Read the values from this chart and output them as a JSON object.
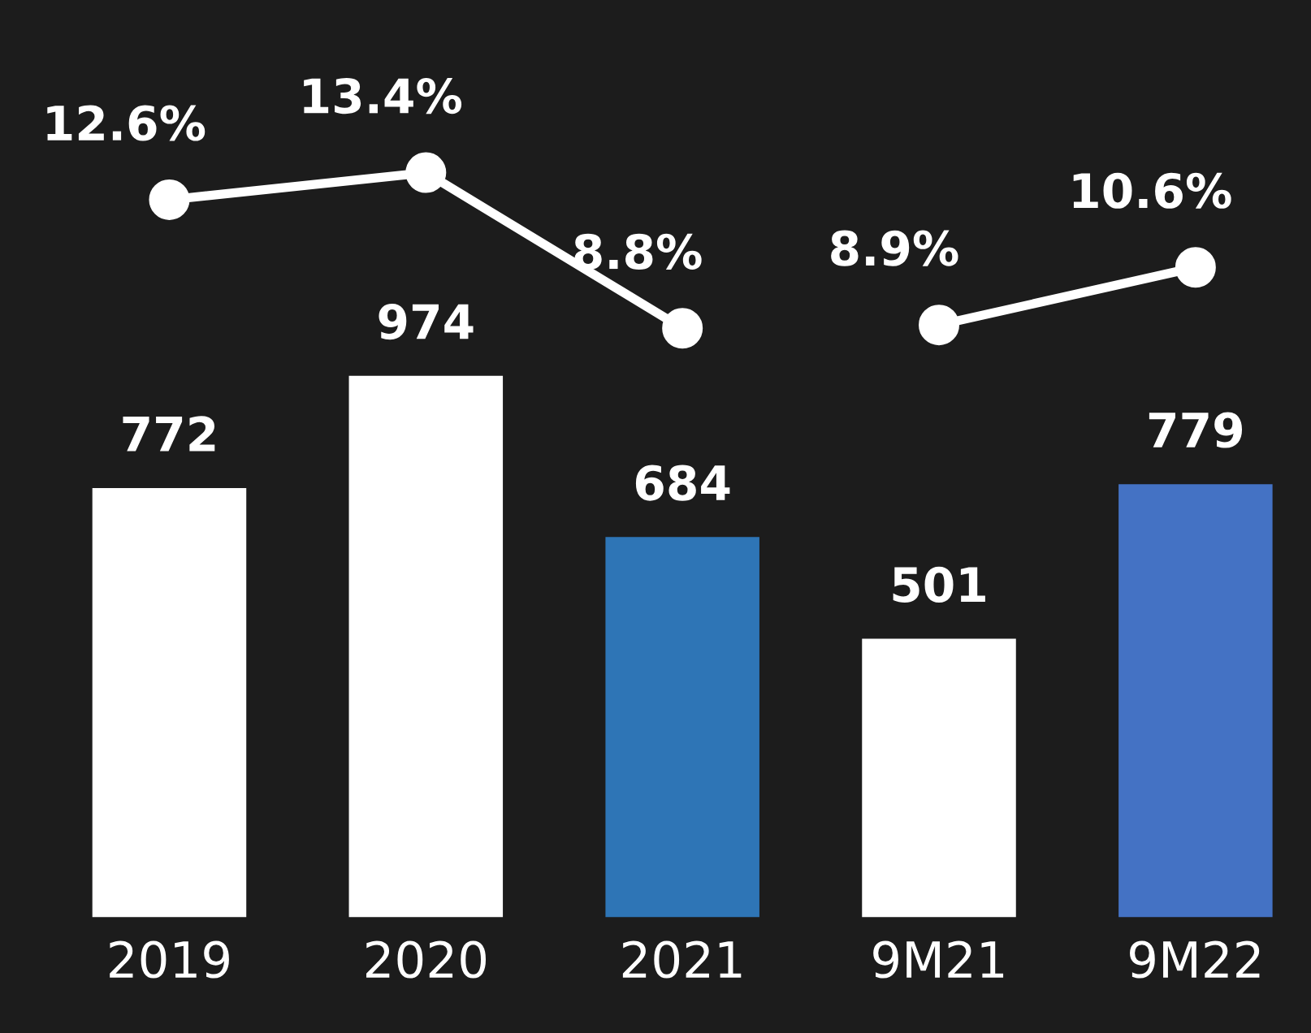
{
  "chart_data": {
    "type": "bar",
    "categories": [
      "2019",
      "2020",
      "2021",
      "9M21",
      "9M22"
    ],
    "series": [
      {
        "colors": [
          "#ffffff",
          "#ffffff",
          "#2e75b6",
          "#ffffff",
          "#4472c4"
        ],
        "values": [
          772,
          974,
          684,
          501,
          779
        ]
      },
      {
        "type": "line",
        "axis": "y2",
        "color": "#ffffff",
        "values": [
          12.6,
          13.4,
          8.8,
          null,
          null
        ],
        "value_labels": [
          "12.6%",
          "13.4%",
          "8.8%",
          null,
          null
        ]
      },
      {
        "type": "line",
        "axis": "y2",
        "color": "#ffffff",
        "values": [
          null,
          null,
          null,
          8.9,
          10.6
        ],
        "value_labels": [
          null,
          null,
          null,
          "8.9%",
          "10.6%"
        ]
      }
    ],
    "data_labels": true,
    "ylim": [
      0,
      1650
    ],
    "y2lim": [
      -8.6,
      18.5
    ],
    "tick_labels": "x",
    "grid": false,
    "legend": false,
    "marker": "circle",
    "line_style": "solid"
  }
}
